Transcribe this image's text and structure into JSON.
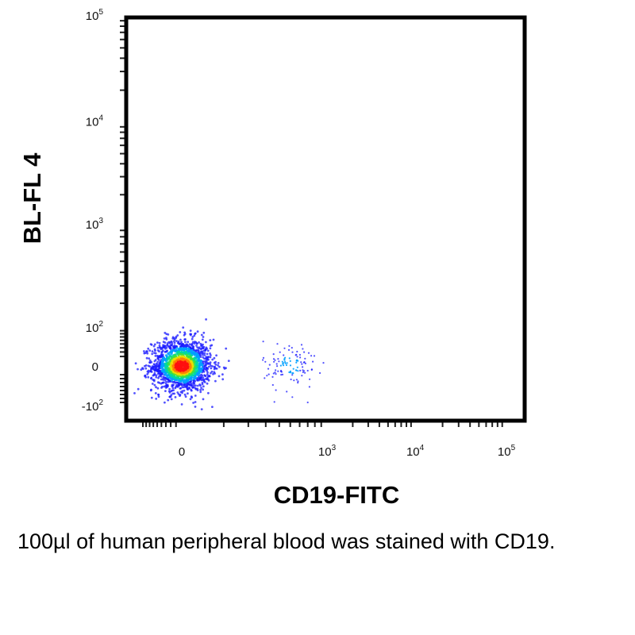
{
  "chart_data": {
    "type": "scatter",
    "plot_style": "flow cytometry pseudocolor density dot plot",
    "xlabel": "CD19-FITC",
    "ylabel": "BL-FL 4",
    "x_scale": "biexponential",
    "y_scale": "biexponential",
    "xlim": [
      -100,
      100000
    ],
    "ylim": [
      -150,
      100000
    ],
    "x_ticks": [
      {
        "value": 0,
        "base": "0",
        "exp": ""
      },
      {
        "value": 1000,
        "base": "10",
        "exp": "3"
      },
      {
        "value": 10000,
        "base": "10",
        "exp": "4"
      },
      {
        "value": 100000,
        "base": "10",
        "exp": "5"
      }
    ],
    "y_ticks": [
      {
        "value": -100,
        "base": "-10",
        "exp": "2"
      },
      {
        "value": 0,
        "base": "0",
        "exp": ""
      },
      {
        "value": 100,
        "base": "10",
        "exp": "2"
      },
      {
        "value": 1000,
        "base": "10",
        "exp": "3"
      },
      {
        "value": 10000,
        "base": "10",
        "exp": "4"
      },
      {
        "value": 100000,
        "base": "10",
        "exp": "5"
      }
    ],
    "populations": [
      {
        "center_x": 0,
        "center_y": 0,
        "spread_x": 0.35,
        "spread_y": 0.35,
        "events": 1800
      },
      {
        "center_x": 500,
        "center_y": 0,
        "spread_x": 0.32,
        "spread_y": 0.35,
        "events": 110
      }
    ],
    "density_colors": [
      "#1a1aff",
      "#00a0ff",
      "#00d8a0",
      "#40e040",
      "#e8e000",
      "#ff8000",
      "#ff1010"
    ],
    "grid": false,
    "legend": "none"
  },
  "caption": "100µl of human peripheral blood was stained with CD19."
}
